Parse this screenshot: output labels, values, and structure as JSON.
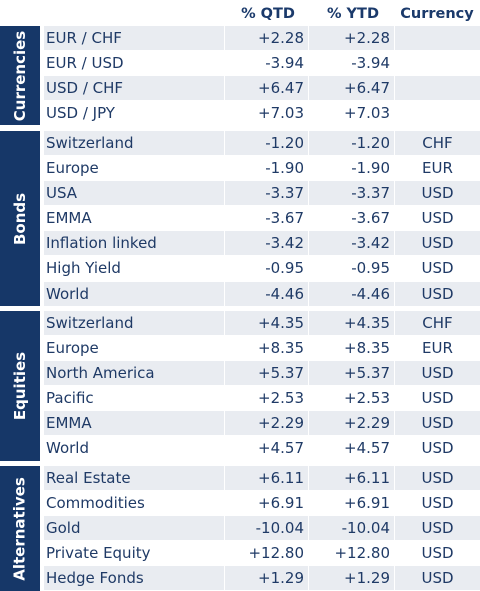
{
  "header": {
    "qtd": "% QTD",
    "ytd": "% YTD",
    "currency": "Currency"
  },
  "colors": {
    "group_band": "#163768",
    "row_shade": "#e9ecf1",
    "text": "#1f3a66"
  },
  "groups": [
    {
      "label": "Currencies",
      "rows": [
        {
          "name": "EUR / CHF",
          "qtd": "+2.28",
          "ytd": "+2.28",
          "currency": ""
        },
        {
          "name": "EUR / USD",
          "qtd": "-3.94",
          "ytd": "-3.94",
          "currency": ""
        },
        {
          "name": "USD / CHF",
          "qtd": "+6.47",
          "ytd": "+6.47",
          "currency": ""
        },
        {
          "name": "USD / JPY",
          "qtd": "+7.03",
          "ytd": "+7.03",
          "currency": ""
        }
      ]
    },
    {
      "label": "Bonds",
      "rows": [
        {
          "name": "Switzerland",
          "qtd": "-1.20",
          "ytd": "-1.20",
          "currency": "CHF"
        },
        {
          "name": "Europe",
          "qtd": "-1.90",
          "ytd": "-1.90",
          "currency": "EUR"
        },
        {
          "name": "USA",
          "qtd": "-3.37",
          "ytd": "-3.37",
          "currency": "USD"
        },
        {
          "name": "EMMA",
          "qtd": "-3.67",
          "ytd": "-3.67",
          "currency": "USD"
        },
        {
          "name": "Inflation linked",
          "qtd": "-3.42",
          "ytd": "-3.42",
          "currency": "USD"
        },
        {
          "name": "High Yield",
          "qtd": "-0.95",
          "ytd": "-0.95",
          "currency": "USD"
        },
        {
          "name": "World",
          "qtd": "-4.46",
          "ytd": "-4.46",
          "currency": "USD"
        }
      ]
    },
    {
      "label": "Equities",
      "rows": [
        {
          "name": "Switzerland",
          "qtd": "+4.35",
          "ytd": "+4.35",
          "currency": "CHF"
        },
        {
          "name": "Europe",
          "qtd": "+8.35",
          "ytd": "+8.35",
          "currency": "EUR"
        },
        {
          "name": "North America",
          "qtd": "+5.37",
          "ytd": "+5.37",
          "currency": "USD"
        },
        {
          "name": "Pacific",
          "qtd": "+2.53",
          "ytd": "+2.53",
          "currency": "USD"
        },
        {
          "name": "EMMA",
          "qtd": "+2.29",
          "ytd": "+2.29",
          "currency": "USD"
        },
        {
          "name": "World",
          "qtd": "+4.57",
          "ytd": "+4.57",
          "currency": "USD"
        }
      ]
    },
    {
      "label": "Alternatives",
      "rows": [
        {
          "name": "Real Estate",
          "qtd": "+6.11",
          "ytd": "+6.11",
          "currency": "USD"
        },
        {
          "name": "Commodities",
          "qtd": "+6.91",
          "ytd": "+6.91",
          "currency": "USD"
        },
        {
          "name": "Gold",
          "qtd": "-10.04",
          "ytd": "-10.04",
          "currency": "USD"
        },
        {
          "name": "Private Equity",
          "qtd": "+12.80",
          "ytd": "+12.80",
          "currency": "USD"
        },
        {
          "name": "Hedge Fonds",
          "qtd": "+1.29",
          "ytd": "+1.29",
          "currency": "USD"
        }
      ]
    }
  ]
}
